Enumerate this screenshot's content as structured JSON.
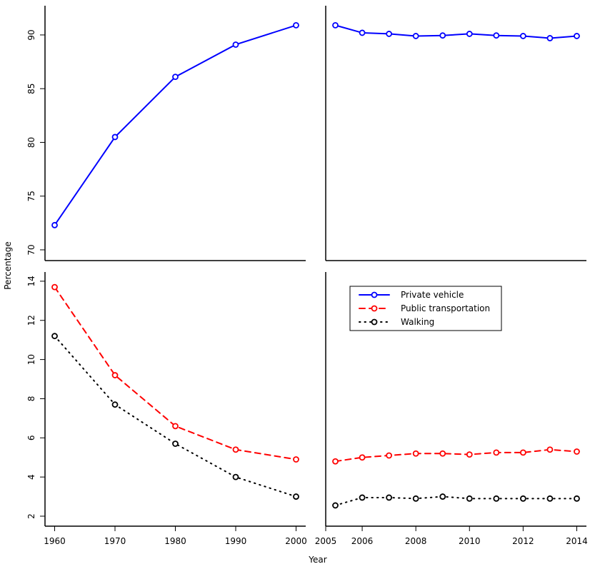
{
  "chart_data": [
    {
      "type": "line",
      "panel": "top-left",
      "x": [
        1960,
        1970,
        1980,
        1990,
        2000
      ],
      "xlim": [
        1958.4,
        2001.6
      ],
      "ylim": [
        69.0,
        92.72
      ],
      "yticks": [
        70,
        75,
        80,
        85,
        90
      ],
      "xticks": [],
      "series": [
        {
          "key": "private",
          "values": [
            72.3,
            80.5,
            86.1,
            89.1,
            90.9
          ]
        }
      ]
    },
    {
      "type": "line",
      "panel": "top-right",
      "x": [
        2005,
        2006,
        2007,
        2008,
        2009,
        2010,
        2011,
        2012,
        2013,
        2014
      ],
      "xlim": [
        2004.64,
        2014.36
      ],
      "ylim": [
        69.0,
        92.72
      ],
      "yticks": [],
      "xticks": [],
      "series": [
        {
          "key": "private",
          "values": [
            90.9,
            90.2,
            90.1,
            89.9,
            89.95,
            90.1,
            89.95,
            89.9,
            89.7,
            89.9
          ]
        }
      ]
    },
    {
      "type": "line",
      "panel": "bottom-left",
      "x": [
        1960,
        1970,
        1980,
        1990,
        2000
      ],
      "xlim": [
        1958.4,
        2001.6
      ],
      "ylim": [
        1.49,
        14.47
      ],
      "yticks": [
        2,
        4,
        6,
        8,
        10,
        12,
        14
      ],
      "xticks": [
        1960,
        1970,
        1980,
        1990,
        2000
      ],
      "series": [
        {
          "key": "public",
          "values": [
            13.7,
            9.2,
            6.6,
            5.4,
            4.9
          ]
        },
        {
          "key": "walking",
          "values": [
            11.2,
            7.7,
            5.7,
            4.0,
            3.0
          ]
        }
      ]
    },
    {
      "type": "line",
      "panel": "bottom-right",
      "x": [
        2005,
        2006,
        2007,
        2008,
        2009,
        2010,
        2011,
        2012,
        2013,
        2014
      ],
      "xlim": [
        2004.64,
        2014.36
      ],
      "ylim": [
        1.49,
        14.47
      ],
      "yticks": [],
      "xticks": [
        2006,
        2008,
        2010,
        2012,
        2014
      ],
      "xtick_start_label": "2005",
      "series": [
        {
          "key": "public",
          "values": [
            4.8,
            5.0,
            5.1,
            5.2,
            5.2,
            5.15,
            5.25,
            5.25,
            5.4,
            5.3
          ]
        },
        {
          "key": "walking",
          "values": [
            2.55,
            2.95,
            2.95,
            2.9,
            3.0,
            2.9,
            2.9,
            2.9,
            2.9,
            2.9
          ]
        }
      ]
    }
  ],
  "series_styles": {
    "private": {
      "name": "Private vehicle",
      "color": "#0000ff",
      "dash": "solid"
    },
    "public": {
      "name": "Public transportation",
      "color": "#ff0000",
      "dash": "dashed"
    },
    "walking": {
      "name": "Walking",
      "color": "#000000",
      "dash": "dotted"
    }
  },
  "legend": {
    "placement": "bottom-right panel, top-left",
    "entries": [
      "Private vehicle",
      "Public transportation",
      "Walking"
    ]
  },
  "xlabel": "Year",
  "ylabel": "Percentage"
}
